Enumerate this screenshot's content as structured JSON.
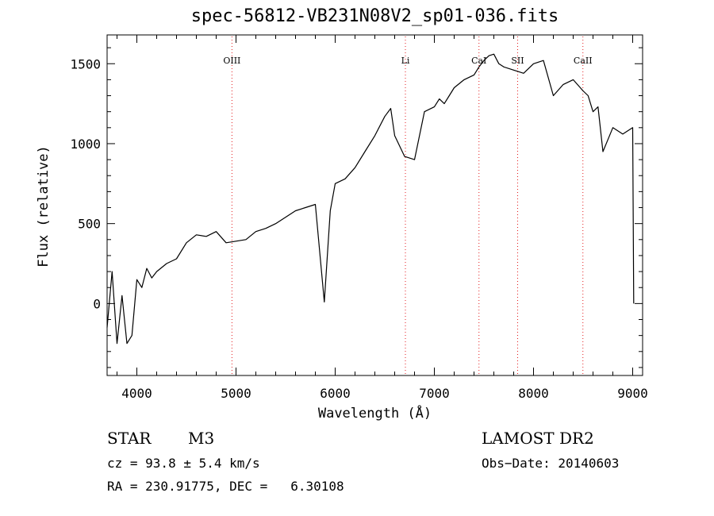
{
  "chart_data": {
    "type": "line",
    "title": "spec-56812-VB231N08V2_sp01-036.fits",
    "xlabel": "Wavelength (Å)",
    "ylabel": "Flux (relative)",
    "xlim": [
      3700,
      9100
    ],
    "ylim": [
      -450,
      1680
    ],
    "xticks": [
      4000,
      5000,
      6000,
      7000,
      8000,
      9000
    ],
    "yticks": [
      0,
      500,
      1000,
      1500
    ],
    "grid": false,
    "series": [
      {
        "color": "#000000",
        "x": [
          3700,
          3750,
          3800,
          3850,
          3900,
          3950,
          4000,
          4050,
          4100,
          4150,
          4200,
          4300,
          4400,
          4500,
          4600,
          4700,
          4800,
          4900,
          5000,
          5100,
          5200,
          5300,
          5400,
          5500,
          5600,
          5700,
          5800,
          5890,
          5950,
          6000,
          6100,
          6200,
          6300,
          6400,
          6500,
          6560,
          6600,
          6700,
          6800,
          6900,
          7000,
          7050,
          7100,
          7150,
          7200,
          7300,
          7400,
          7450,
          7500,
          7550,
          7600,
          7650,
          7700,
          7800,
          7900,
          8000,
          8100,
          8200,
          8300,
          8400,
          8500,
          8550,
          8600,
          8650,
          8700,
          8800,
          8900,
          9000,
          9010
        ],
        "y": [
          -150,
          200,
          -250,
          50,
          -250,
          -200,
          150,
          100,
          220,
          160,
          200,
          250,
          280,
          380,
          430,
          420,
          450,
          380,
          390,
          400,
          450,
          470,
          500,
          540,
          580,
          600,
          620,
          10,
          580,
          750,
          780,
          850,
          950,
          1050,
          1170,
          1220,
          1050,
          920,
          900,
          1200,
          1230,
          1280,
          1250,
          1300,
          1350,
          1400,
          1430,
          1480,
          1520,
          1550,
          1560,
          1500,
          1480,
          1460,
          1440,
          1500,
          1520,
          1300,
          1370,
          1400,
          1330,
          1300,
          1200,
          1230,
          950,
          1100,
          1060,
          1100,
          0
        ]
      }
    ],
    "lines": [
      {
        "label": "OIII",
        "x": 4959
      },
      {
        "label": "Li",
        "x": 6708
      },
      {
        "label": "CaI",
        "x": 7450
      },
      {
        "label": "SII",
        "x": 7840
      },
      {
        "label": "CaII",
        "x": 8498
      }
    ]
  },
  "footer": {
    "object_class": "STAR",
    "subclass": "M3",
    "survey": "LAMOST DR2",
    "redshift": "cz = 93.8 ± 5.4 km/s",
    "obs_date": "Obs−Date: 20140603",
    "coords": "RA = 230.91775, DEC =   6.30108"
  }
}
